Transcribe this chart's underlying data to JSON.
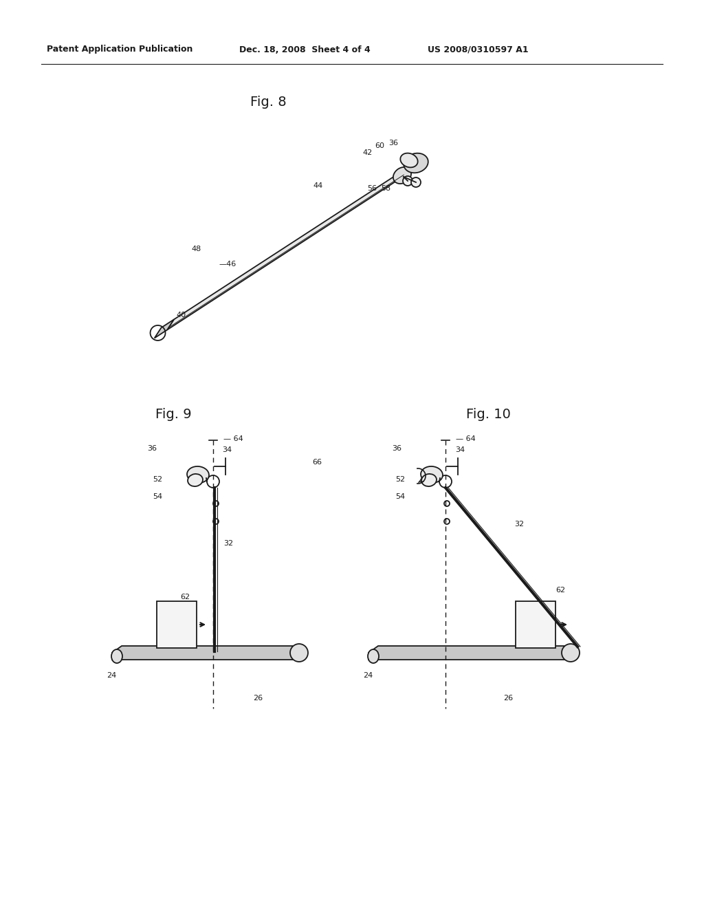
{
  "bg_color": "#ffffff",
  "line_color": "#1a1a1a",
  "header_text": "Patent Application Publication",
  "header_date": "Dec. 18, 2008  Sheet 4 of 4",
  "header_patent": "US 2008/0310597 A1",
  "fig8_title": "Fig. 8",
  "fig9_title": "Fig. 9",
  "fig10_title": "Fig. 10",
  "font_size_header": 9,
  "font_size_fig": 14,
  "font_size_label": 8
}
